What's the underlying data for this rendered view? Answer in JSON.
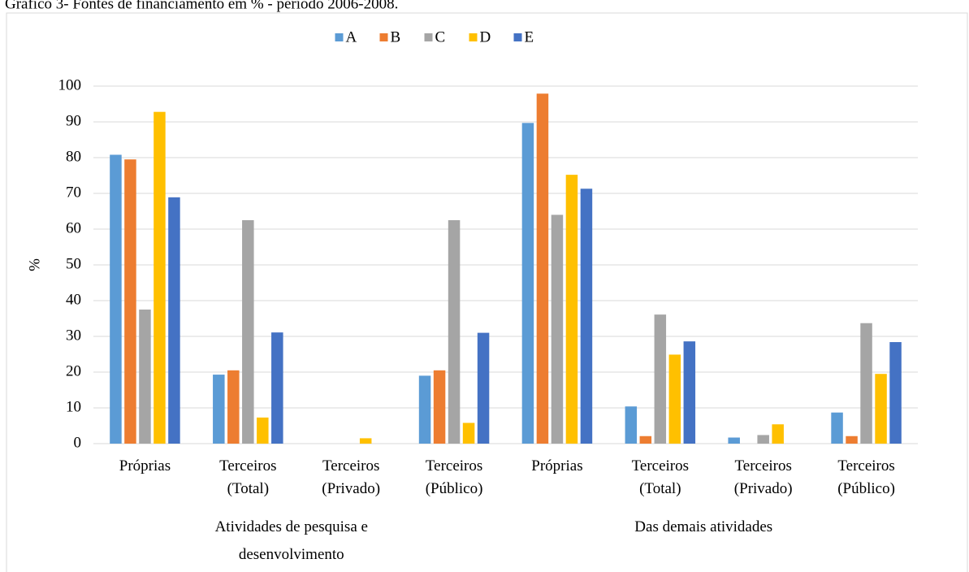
{
  "chart_data": {
    "type": "bar",
    "title": "Gráfico 3- Fontes de financiamento em % - período 2006-2008.",
    "ylabel": "%",
    "categories": [
      [
        "Próprias"
      ],
      [
        "Terceiros",
        "(Total)"
      ],
      [
        "Terceiros",
        "(Privado)"
      ],
      [
        "Terceiros",
        "(Público)"
      ],
      [
        "Próprias"
      ],
      [
        "Terceiros",
        "(Total)"
      ],
      [
        "Terceiros",
        "(Privado)"
      ],
      [
        "Terceiros",
        "(Público)"
      ]
    ],
    "groups": [
      [
        "Atividades de pesquisa e",
        "desenvolvimento"
      ],
      [
        "Das demais atividades"
      ]
    ],
    "series": [
      {
        "name": "A",
        "color": "#5b9bd5",
        "values": [
          80.8,
          19.3,
          0,
          19.0,
          89.7,
          10.4,
          1.7,
          8.7
        ]
      },
      {
        "name": "B",
        "color": "#ed7d31",
        "values": [
          79.5,
          20.5,
          0,
          20.5,
          97.9,
          2.1,
          0,
          2.1
        ]
      },
      {
        "name": "C",
        "color": "#a5a5a5",
        "values": [
          37.5,
          62.5,
          0,
          62.5,
          64.0,
          36.1,
          2.4,
          33.7
        ]
      },
      {
        "name": "D",
        "color": "#ffc000",
        "values": [
          92.8,
          7.3,
          1.5,
          5.8,
          75.2,
          24.9,
          5.4,
          19.5
        ]
      },
      {
        "name": "E",
        "color": "#4472c4",
        "values": [
          68.9,
          31.1,
          0,
          31.0,
          71.3,
          28.6,
          0,
          28.4
        ]
      }
    ],
    "ylim": [
      0,
      100
    ],
    "yticks": [
      0,
      10,
      20,
      30,
      40,
      50,
      60,
      70,
      80,
      90,
      100
    ],
    "grid": true,
    "legend": "top"
  }
}
